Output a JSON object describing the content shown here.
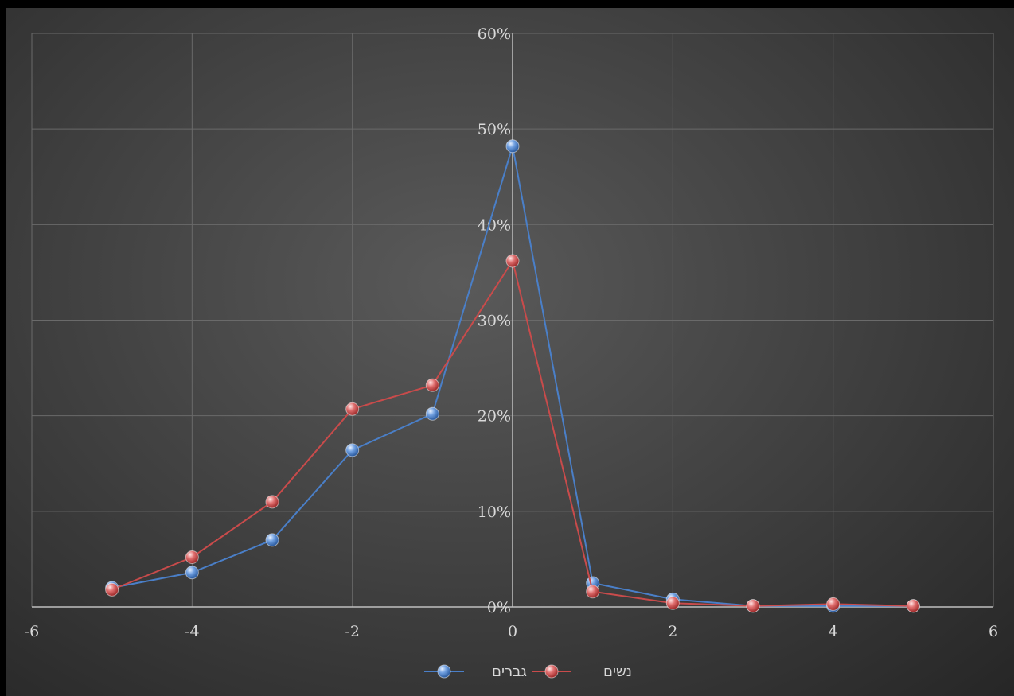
{
  "chart_data": {
    "type": "scatter",
    "xlim": [
      -6,
      6
    ],
    "ylim": [
      0,
      0.6
    ],
    "x_ticks": [
      "-6",
      "-4",
      "-2",
      "0",
      "2",
      "4",
      "6"
    ],
    "y_ticks": [
      "0%",
      "10%",
      "20%",
      "30%",
      "40%",
      "50%",
      "60%"
    ],
    "grid": true,
    "legend_position": "bottom",
    "series": [
      {
        "name": "גברים",
        "color": "#4a7fc8",
        "x": [
          -5,
          -4,
          -3,
          -2,
          -1,
          0,
          1,
          2,
          3,
          4,
          5
        ],
        "y": [
          0.02,
          0.036,
          0.07,
          0.164,
          0.202,
          0.482,
          0.025,
          0.008,
          0.001,
          0.001,
          0.001
        ]
      },
      {
        "name": "נשים",
        "color": "#c94b4b",
        "x": [
          -5,
          -4,
          -3,
          -2,
          -1,
          0,
          1,
          2,
          3,
          4,
          5
        ],
        "y": [
          0.018,
          0.052,
          0.11,
          0.207,
          0.232,
          0.362,
          0.016,
          0.004,
          0.001,
          0.003,
          0.001
        ]
      }
    ]
  }
}
